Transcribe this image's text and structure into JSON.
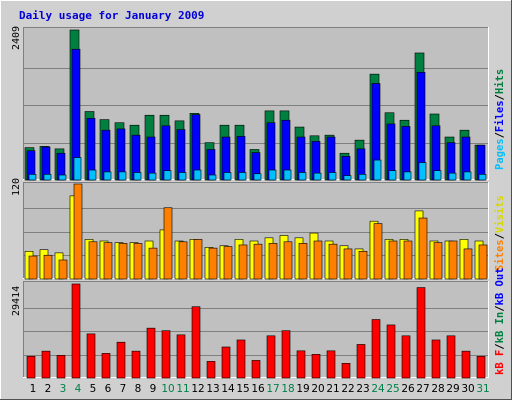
{
  "title": "Daily usage for January 2009",
  "colors": {
    "hits": "#008040",
    "files": "#0000ff",
    "pages": "#00c0ff",
    "visits": "#ffff00",
    "sites": "#ff8000",
    "kbin": "#008040",
    "kbout": "#0000ff",
    "kbf": "#ff0000",
    "weekend_day": "#00804a",
    "weekday_day": "#000000",
    "panel_bg": "#c0c0c0",
    "outer_bg": "#d0d0d0"
  },
  "legend": {
    "top": {
      "pages": "Pages",
      "files": "Files",
      "hits": "Hits"
    },
    "middle": {
      "sites": "Sites",
      "visits": "Visits"
    },
    "bottom": {
      "kbf": "kB F",
      "kbin": "kB In",
      "kbout": "kB Out"
    }
  },
  "chart_data": {
    "type": "bar",
    "title": "Daily usage for January 2009",
    "categories": [
      "1",
      "2",
      "3",
      "4",
      "5",
      "6",
      "7",
      "8",
      "9",
      "10",
      "11",
      "12",
      "13",
      "14",
      "15",
      "16",
      "17",
      "18",
      "19",
      "20",
      "21",
      "22",
      "23",
      "24",
      "25",
      "26",
      "27",
      "28",
      "29",
      "30",
      "31"
    ],
    "weekend_days": [
      "3",
      "4",
      "10",
      "11",
      "17",
      "18",
      "24",
      "25",
      "31"
    ],
    "panels": [
      {
        "name": "hits-files-pages",
        "ymax_label": "2409",
        "ymax": 2409,
        "series": [
          {
            "name": "Hits",
            "values": [
              520,
              540,
              500,
              2409,
              1100,
              970,
              920,
              880,
              1040,
              1040,
              950,
              1070,
              600,
              880,
              880,
              490,
              1110,
              1110,
              850,
              710,
              720,
              430,
              640,
              1700,
              1080,
              960,
              2040,
              1060,
              690,
              800,
              560
            ]
          },
          {
            "name": "Files",
            "values": [
              470,
              530,
              430,
              2100,
              990,
              800,
              820,
              720,
              690,
              870,
              810,
              1050,
              490,
              690,
              700,
              440,
              920,
              960,
              690,
              620,
              690,
              380,
              500,
              1550,
              900,
              860,
              1730,
              870,
              600,
              690,
              560
            ]
          },
          {
            "name": "Pages",
            "values": [
              90,
              90,
              80,
              360,
              160,
              130,
              130,
              120,
              110,
              150,
              120,
              160,
              80,
              120,
              120,
              100,
              160,
              160,
              120,
              110,
              120,
              70,
              90,
              320,
              150,
              130,
              280,
              150,
              110,
              130,
              90
            ]
          }
        ]
      },
      {
        "name": "visits-sites",
        "ymax_label": "120",
        "ymax": 120,
        "series": [
          {
            "name": "Visits",
            "values": [
              35,
              37,
              33,
              105,
              50,
              48,
              46,
              46,
              48,
              62,
              48,
              50,
              40,
              42,
              50,
              48,
              52,
              55,
              52,
              58,
              48,
              42,
              38,
              73,
              50,
              50,
              86,
              48,
              48,
              50,
              48
            ]
          },
          {
            "name": "Sites",
            "values": [
              29,
              30,
              24,
              120,
              47,
              46,
              45,
              45,
              39,
              90,
              47,
              50,
              39,
              41,
              43,
              44,
              45,
              47,
              45,
              48,
              44,
              38,
              35,
              70,
              48,
              48,
              77,
              46,
              48,
              38,
              43
            ]
          }
        ]
      },
      {
        "name": "kbytes",
        "ymax_label": "29414",
        "ymax": 29414,
        "series": [
          {
            "name": "kB F",
            "values": [
              6800,
              8400,
              7100,
              29414,
              13800,
              7700,
              11200,
              8400,
              15600,
              14800,
              13500,
              22300,
              5200,
              9700,
              11900,
              5500,
              13200,
              14800,
              8500,
              7400,
              8500,
              4600,
              10500,
              18300,
              16600,
              13200,
              28300,
              11900,
              13200,
              8400,
              6800
            ]
          }
        ]
      }
    ]
  }
}
